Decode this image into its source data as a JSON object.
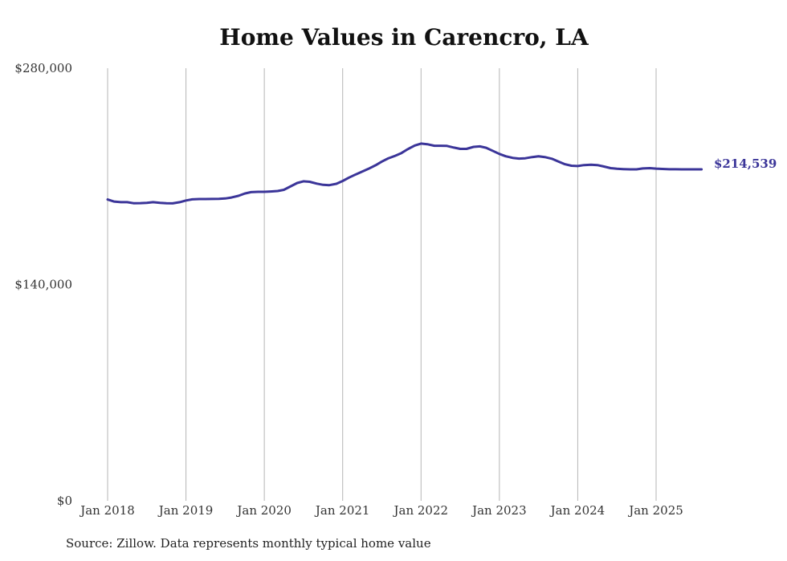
{
  "chart_data": {
    "type": "line",
    "title": "Home Values in Carencro, LA",
    "xlabel": "",
    "ylabel": "",
    "ylim": [
      0,
      280000
    ],
    "y_ticks": [
      {
        "value": 0,
        "label": "$0"
      },
      {
        "value": 140000,
        "label": "$140,000"
      },
      {
        "value": 280000,
        "label": "$280,000"
      }
    ],
    "x_ticks": [
      {
        "value": 2018.0,
        "label": "Jan 2018"
      },
      {
        "value": 2019.0,
        "label": "Jan 2019"
      },
      {
        "value": 2020.0,
        "label": "Jan 2020"
      },
      {
        "value": 2021.0,
        "label": "Jan 2021"
      },
      {
        "value": 2022.0,
        "label": "Jan 2022"
      },
      {
        "value": 2023.0,
        "label": "Jan 2023"
      },
      {
        "value": 2024.0,
        "label": "Jan 2024"
      },
      {
        "value": 2025.0,
        "label": "Jan 2025"
      }
    ],
    "grid": "vertical",
    "line_color": "#3b3599",
    "series": [
      {
        "x": [
          2018.0,
          2018.08,
          2018.17,
          2018.25,
          2018.33,
          2018.42,
          2018.5,
          2018.58,
          2018.67,
          2018.75,
          2018.83,
          2018.92,
          2019.0,
          2019.08,
          2019.17,
          2019.25,
          2019.33,
          2019.42,
          2019.5,
          2019.58,
          2019.67,
          2019.75,
          2019.83,
          2019.92,
          2020.0,
          2020.08,
          2020.17,
          2020.25,
          2020.33,
          2020.42,
          2020.5,
          2020.58,
          2020.67,
          2020.75,
          2020.83,
          2020.92,
          2021.0,
          2021.08,
          2021.17,
          2021.25,
          2021.33,
          2021.42,
          2021.5,
          2021.58,
          2021.67,
          2021.75,
          2021.83,
          2021.92,
          2022.0,
          2022.08,
          2022.17,
          2022.25,
          2022.33,
          2022.42,
          2022.5,
          2022.58,
          2022.67,
          2022.75,
          2022.83,
          2022.92,
          2023.0,
          2023.08,
          2023.17,
          2023.25,
          2023.33,
          2023.42,
          2023.5,
          2023.58,
          2023.67,
          2023.75,
          2023.83,
          2023.92,
          2024.0,
          2024.08,
          2024.17,
          2024.25,
          2024.33,
          2024.42,
          2024.5,
          2024.58,
          2024.67,
          2024.75,
          2024.83,
          2024.92,
          2025.0,
          2025.08,
          2025.17,
          2025.25,
          2025.33,
          2025.42,
          2025.5,
          2025.58
        ],
        "values": [
          195000,
          193700,
          193300,
          193300,
          192600,
          192700,
          192900,
          193300,
          192900,
          192600,
          192500,
          193300,
          194400,
          195100,
          195300,
          195300,
          195400,
          195500,
          195700,
          196300,
          197400,
          198900,
          199800,
          200000,
          200000,
          200200,
          200500,
          201300,
          203400,
          205700,
          206800,
          206500,
          205300,
          204500,
          204300,
          205200,
          207000,
          209200,
          211300,
          213100,
          214900,
          217200,
          219600,
          221600,
          223300,
          225100,
          227600,
          230000,
          231200,
          230800,
          229800,
          229800,
          229700,
          228600,
          227800,
          227800,
          229100,
          229400,
          228500,
          226400,
          224500,
          223000,
          222000,
          221500,
          221700,
          222500,
          223000,
          222500,
          221400,
          219700,
          218000,
          216900,
          216700,
          217300,
          217500,
          217300,
          216400,
          215300,
          214900,
          214700,
          214539,
          214539,
          215100,
          215300,
          215000,
          214800,
          214600,
          214600,
          214550,
          214540,
          214539,
          214539
        ]
      }
    ],
    "end_label": "$214,539"
  },
  "source_note": "Source: Zillow. Data represents monthly typical home value"
}
